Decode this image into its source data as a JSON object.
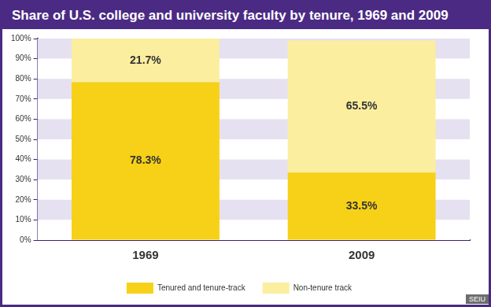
{
  "chart_data": {
    "type": "bar",
    "title": "Share of U.S. college and university faculty by tenure, 1969 and 2009",
    "categories": [
      "1969",
      "2009"
    ],
    "series": [
      {
        "name": "Tenured and tenure-track",
        "color": "#f7d117",
        "values": [
          78.3,
          33.5
        ],
        "value_labels": [
          "78.3%",
          "33.5%"
        ]
      },
      {
        "name": "Non-tenure track",
        "color": "#fbee9e",
        "values": [
          21.7,
          65.5
        ],
        "value_labels": [
          "21.7%",
          "65.5%"
        ]
      }
    ],
    "ylim": [
      0,
      100
    ],
    "yticks": [
      {
        "value": 0,
        "label": "0%"
      },
      {
        "value": 10,
        "label": "10%"
      },
      {
        "value": 20,
        "label": "20%"
      },
      {
        "value": 30,
        "label": "30%"
      },
      {
        "value": 40,
        "label": "40%"
      },
      {
        "value": 50,
        "label": "50%"
      },
      {
        "value": 60,
        "label": "60%"
      },
      {
        "value": 70,
        "label": "70%"
      },
      {
        "value": 80,
        "label": "80%"
      },
      {
        "value": 90,
        "label": "90%"
      },
      {
        "value": 100,
        "label": "100%"
      }
    ],
    "stacked": true,
    "grid": true,
    "legend": "bottom",
    "data_labels": true,
    "annotations": [
      "SEIU"
    ]
  }
}
